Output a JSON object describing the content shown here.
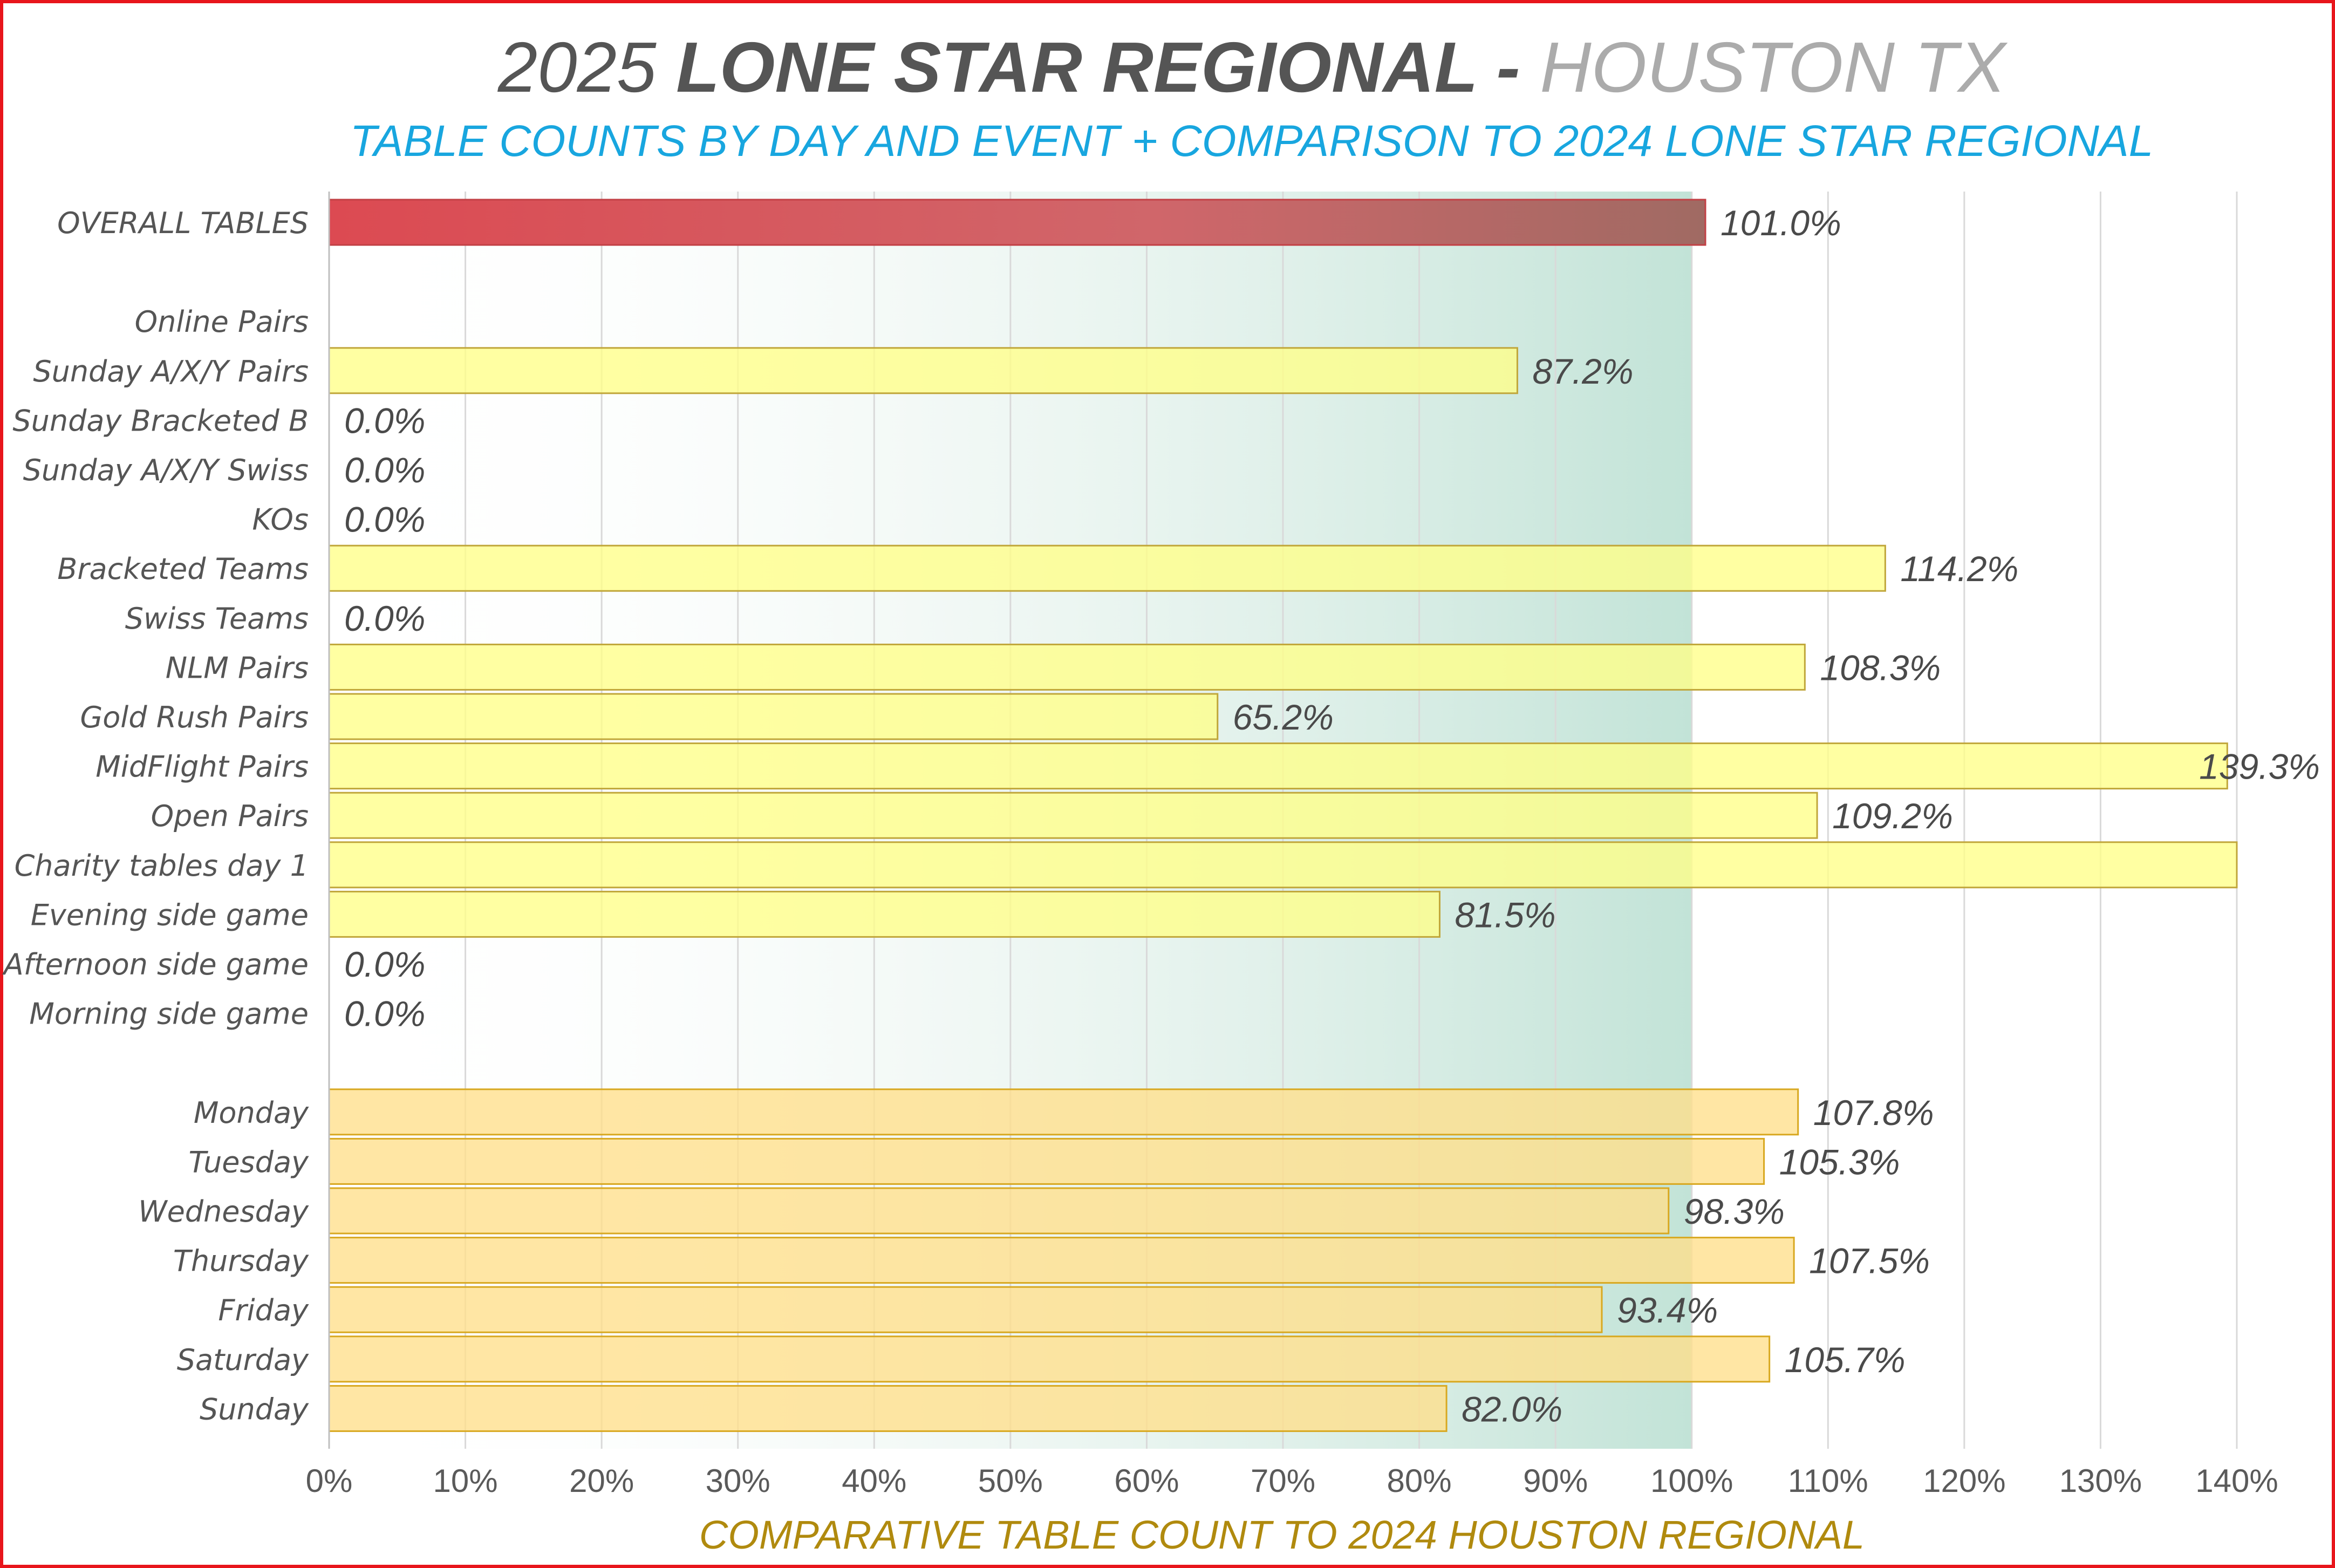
{
  "title": {
    "year": "2025 ",
    "name": "LONE STAR REGIONAL - ",
    "location": "HOUSTON TX"
  },
  "subtitle": "TABLE COUNTS BY DAY AND EVENT + COMPARISON TO 2024 LONE STAR REGIONAL",
  "colors": {
    "frame": "#e8151b",
    "title_dark": "#555555",
    "title_light": "#ababab",
    "subtitle": "#18a6df",
    "overall_bar": "#d9525a",
    "event_bar": "#ffff88",
    "event_bar_border": "#c0a63a",
    "day_bar": "#ffdf8a",
    "day_bar_border": "#d8a820",
    "shaded_band": "#c2e3d7",
    "x_axis_title": "#b08a0e"
  },
  "chart_data": {
    "type": "bar",
    "orientation": "horizontal",
    "x_label": "COMPARATIVE TABLE COUNT TO 2024 HOUSTON REGIONAL",
    "xlim": [
      0,
      140
    ],
    "x_ticks": [
      "0%",
      "10%",
      "20%",
      "30%",
      "40%",
      "50%",
      "60%",
      "70%",
      "80%",
      "90%",
      "100%",
      "110%",
      "120%",
      "130%",
      "140%"
    ],
    "shaded_band": {
      "from": 0,
      "to": 100
    },
    "grid": true,
    "categories": [
      {
        "label": "OVERALL TABLES",
        "value": 101.0,
        "value_label": "101.0%",
        "group": "overall"
      },
      {
        "label": "Online Pairs",
        "value": null,
        "value_label": "",
        "group": "event"
      },
      {
        "label": "Sunday A/X/Y Pairs",
        "value": 87.2,
        "value_label": "87.2%",
        "group": "event"
      },
      {
        "label": "Sunday Bracketed B",
        "value": 0,
        "value_label": "0.0%",
        "group": "event"
      },
      {
        "label": "Sunday A/X/Y Swiss",
        "value": 0,
        "value_label": "0.0%",
        "group": "event"
      },
      {
        "label": "KOs",
        "value": 0,
        "value_label": "0.0%",
        "group": "event"
      },
      {
        "label": "Bracketed Teams",
        "value": 114.2,
        "value_label": "114.2%",
        "group": "event"
      },
      {
        "label": "Swiss Teams",
        "value": 0,
        "value_label": "0.0%",
        "group": "event"
      },
      {
        "label": "NLM Pairs",
        "value": 108.3,
        "value_label": "108.3%",
        "group": "event"
      },
      {
        "label": "Gold Rush Pairs",
        "value": 65.2,
        "value_label": "65.2%",
        "group": "event"
      },
      {
        "label": "MidFlight Pairs",
        "value": 139.3,
        "value_label": "139.3%",
        "group": "event"
      },
      {
        "label": "Open Pairs",
        "value": 109.2,
        "value_label": "109.2%",
        "group": "event"
      },
      {
        "label": "Charity tables day 1",
        "value": 140,
        "value_label": "",
        "group": "event"
      },
      {
        "label": "Evening side game",
        "value": 81.5,
        "value_label": "81.5%",
        "group": "event"
      },
      {
        "label": "Afternoon side game",
        "value": 0,
        "value_label": "0.0%",
        "group": "event"
      },
      {
        "label": "Morning side game",
        "value": 0,
        "value_label": "0.0%",
        "group": "event"
      },
      {
        "label": "Monday",
        "value": 107.8,
        "value_label": "107.8%",
        "group": "day"
      },
      {
        "label": "Tuesday",
        "value": 105.3,
        "value_label": "105.3%",
        "group": "day"
      },
      {
        "label": "Wednesday",
        "value": 98.3,
        "value_label": "98.3%",
        "group": "day"
      },
      {
        "label": "Thursday",
        "value": 107.5,
        "value_label": "107.5%",
        "group": "day"
      },
      {
        "label": "Friday",
        "value": 93.4,
        "value_label": "93.4%",
        "group": "day"
      },
      {
        "label": "Saturday",
        "value": 105.7,
        "value_label": "105.7%",
        "group": "day"
      },
      {
        "label": "Sunday",
        "value": 82.0,
        "value_label": "82.0%",
        "group": "day"
      }
    ]
  }
}
